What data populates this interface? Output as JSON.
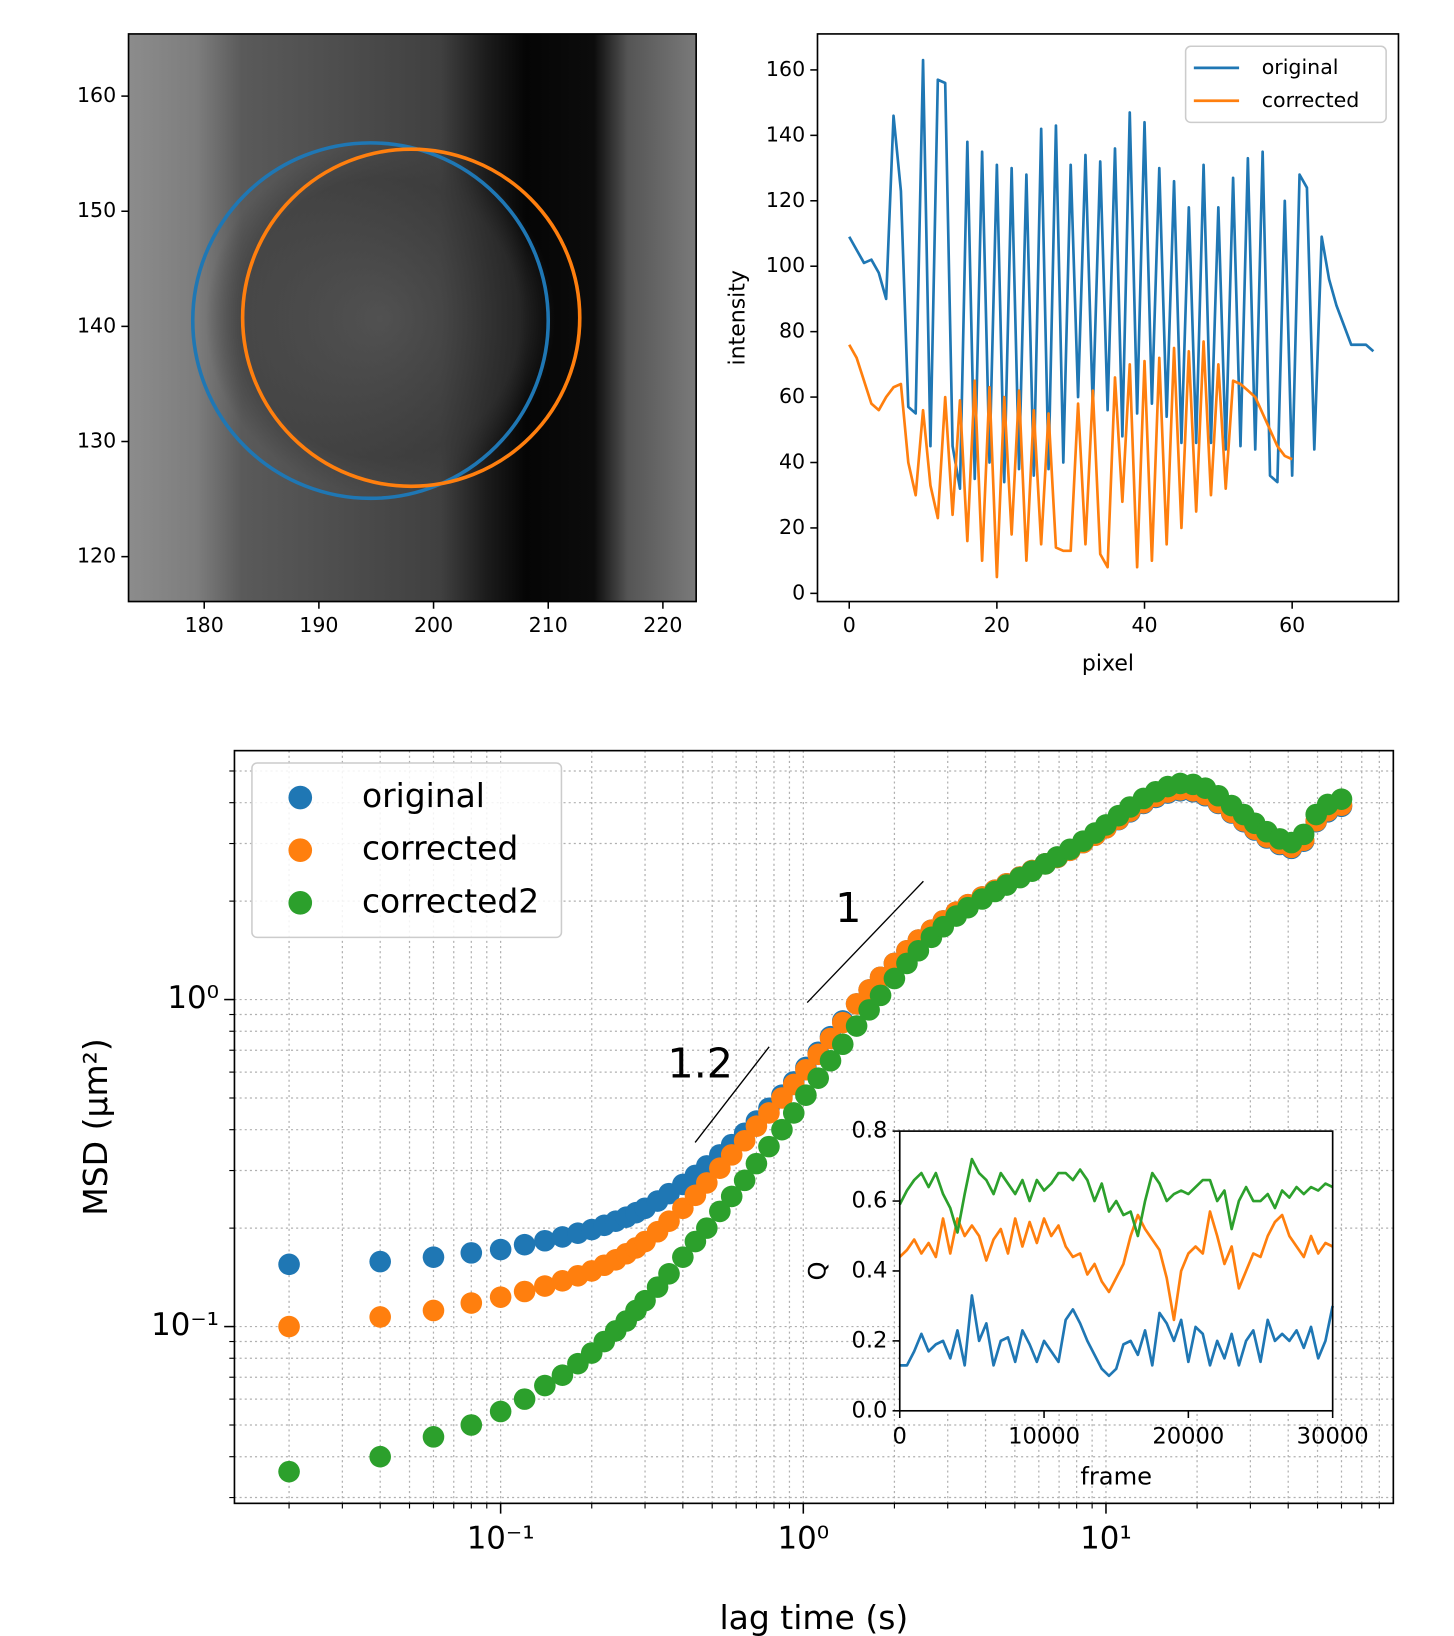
{
  "chart_data": [
    {
      "type": "image",
      "xlim": [
        173.4,
        222.9
      ],
      "ylim": [
        116.1,
        165.4
      ],
      "xticks": [
        180,
        190,
        200,
        210,
        220
      ],
      "yticks": [
        120,
        130,
        140,
        150,
        160
      ],
      "circles": [
        {
          "color": "#1f77b4",
          "center": [
            194.5,
            140.5
          ],
          "radius": 15.5
        },
        {
          "color": "#ff7f0e",
          "center": [
            198.05,
            140.75
          ],
          "radius": 14.7
        }
      ]
    },
    {
      "type": "line",
      "xlabel": "pixel",
      "ylabel": "intensity",
      "xlim": [
        -4.3,
        74.4
      ],
      "ylim": [
        -2.5,
        171
      ],
      "xticks": [
        0,
        20,
        40,
        60
      ],
      "yticks": [
        0,
        20,
        40,
        60,
        80,
        100,
        120,
        140,
        160
      ],
      "legend": "upper right",
      "series": [
        {
          "name": "original",
          "color": "#1f77b4",
          "x": [
            0,
            1,
            2,
            3,
            4,
            5,
            6,
            7,
            8,
            9,
            10,
            11,
            12,
            13,
            14,
            15,
            16,
            17,
            18,
            19,
            20,
            21,
            22,
            23,
            24,
            25,
            26,
            27,
            28,
            29,
            30,
            31,
            32,
            33,
            34,
            35,
            36,
            37,
            38,
            39,
            40,
            41,
            42,
            43,
            44,
            45,
            46,
            47,
            48,
            49,
            50,
            51,
            52,
            53,
            54,
            55,
            56,
            57,
            58,
            59,
            60,
            61,
            62,
            63,
            64,
            65,
            66,
            67,
            68,
            69,
            70,
            71
          ],
          "values": [
            109,
            105,
            101,
            102,
            98,
            90,
            146,
            123,
            57,
            55,
            163,
            45,
            157,
            156,
            45,
            32,
            138,
            35,
            135,
            40,
            131,
            34,
            130,
            38,
            128,
            36,
            142,
            38,
            143,
            40,
            131,
            60,
            134,
            56,
            132,
            56,
            136,
            48,
            147,
            55,
            144,
            58,
            130,
            54,
            126,
            46,
            118,
            46,
            131,
            46,
            118,
            44,
            127,
            45,
            133,
            44,
            135,
            36,
            34,
            120,
            36,
            128,
            124,
            44,
            109,
            96,
            88,
            82,
            76,
            76,
            76,
            74
          ]
        },
        {
          "name": "corrected",
          "color": "#ff7f0e",
          "x": [
            0,
            1,
            2,
            3,
            4,
            5,
            6,
            7,
            8,
            9,
            10,
            11,
            12,
            13,
            14,
            15,
            16,
            17,
            18,
            19,
            20,
            21,
            22,
            23,
            24,
            25,
            26,
            27,
            28,
            29,
            30,
            31,
            32,
            33,
            34,
            35,
            36,
            37,
            38,
            39,
            40,
            41,
            42,
            43,
            44,
            45,
            46,
            47,
            48,
            49,
            50,
            51,
            52,
            53,
            54,
            55,
            56,
            57,
            58,
            59,
            60
          ],
          "values": [
            76,
            72,
            65,
            58,
            56,
            60,
            63,
            64,
            40,
            30,
            56,
            33,
            23,
            60,
            24,
            59,
            16,
            65,
            10,
            63,
            5,
            60,
            18,
            62,
            10,
            56,
            15,
            55,
            14,
            13,
            13,
            58,
            15,
            62,
            12,
            8,
            66,
            28,
            70,
            8,
            71,
            10,
            72,
            15,
            75,
            20,
            74,
            25,
            77,
            30,
            70,
            32,
            65,
            64,
            62,
            60,
            55,
            50,
            45,
            42,
            41
          ]
        }
      ]
    },
    {
      "type": "scatter",
      "xscale": "log",
      "yscale": "log",
      "xlabel": "lag time (s)",
      "ylabel": "MSD (μm²)",
      "xlim": [
        0.0132,
        89
      ],
      "ylim": [
        0.0288,
        5.77
      ],
      "grid": true,
      "legend": "upper left",
      "xticks": [
        {
          "value": 0.1,
          "label": "10⁻¹"
        },
        {
          "value": 1,
          "label": "10⁰"
        },
        {
          "value": 10,
          "label": "10¹"
        }
      ],
      "yticks": [
        {
          "value": 0.1,
          "label": "10⁻¹"
        },
        {
          "value": 1,
          "label": "10⁰"
        }
      ],
      "xminorticks": [
        0.02,
        0.03,
        0.04,
        0.05,
        0.06,
        0.07,
        0.08,
        0.09,
        0.2,
        0.3,
        0.4,
        0.5,
        0.6,
        0.7,
        0.8,
        0.9,
        2,
        3,
        4,
        5,
        6,
        7,
        8,
        9,
        20,
        30,
        40,
        50,
        60,
        70,
        80
      ],
      "yminorticks": [
        0.03,
        0.04,
        0.05,
        0.06,
        0.07,
        0.08,
        0.09,
        0.2,
        0.3,
        0.4,
        0.5,
        0.6,
        0.7,
        0.8,
        0.9,
        2,
        3,
        4,
        5
      ],
      "annotations": [
        {
          "text": "1"
        },
        {
          "text": "1.2"
        }
      ],
      "x": [
        0.02,
        0.04,
        0.06,
        0.08,
        0.1,
        0.12,
        0.14,
        0.16,
        0.18,
        0.2,
        0.22,
        0.24,
        0.26,
        0.28,
        0.3,
        0.33,
        0.36,
        0.4,
        0.44,
        0.48,
        0.53,
        0.58,
        0.64,
        0.7,
        0.77,
        0.85,
        0.93,
        1.02,
        1.12,
        1.23,
        1.35,
        1.5,
        1.65,
        1.8,
        2,
        2.2,
        2.4,
        2.65,
        2.9,
        3.2,
        3.5,
        3.9,
        4.3,
        4.7,
        5.2,
        5.7,
        6.3,
        6.9,
        7.6,
        8.4,
        9.2,
        10,
        11,
        12,
        13.3,
        14.6,
        16,
        17.6,
        19.4,
        21.3,
        23.5,
        26,
        28.5,
        31,
        34,
        37.5,
        41,
        45,
        49.5,
        54,
        60
      ],
      "series": [
        {
          "name": "original",
          "color": "#1f77b4",
          "values": [
            0.155,
            0.158,
            0.163,
            0.168,
            0.172,
            0.178,
            0.183,
            0.188,
            0.193,
            0.198,
            0.204,
            0.21,
            0.216,
            0.223,
            0.23,
            0.242,
            0.255,
            0.272,
            0.29,
            0.31,
            0.335,
            0.36,
            0.39,
            0.425,
            0.465,
            0.51,
            0.56,
            0.62,
            0.69,
            0.77,
            0.86,
            0.97,
            1.07,
            1.17,
            1.29,
            1.41,
            1.52,
            1.63,
            1.74,
            1.85,
            1.95,
            2.06,
            2.16,
            2.26,
            2.37,
            2.48,
            2.6,
            2.72,
            2.86,
            3.02,
            3.18,
            3.35,
            3.55,
            3.75,
            3.98,
            4.15,
            4.28,
            4.35,
            4.32,
            4.2,
            3.98,
            3.72,
            3.5,
            3.3,
            3.12,
            2.98,
            2.9,
            3.05,
            3.5,
            3.75,
            3.9
          ]
        },
        {
          "name": "corrected",
          "color": "#ff7f0e",
          "values": [
            0.1,
            0.107,
            0.112,
            0.118,
            0.123,
            0.128,
            0.133,
            0.138,
            0.143,
            0.148,
            0.154,
            0.16,
            0.167,
            0.174,
            0.182,
            0.195,
            0.21,
            0.23,
            0.252,
            0.275,
            0.305,
            0.335,
            0.37,
            0.41,
            0.45,
            0.5,
            0.55,
            0.61,
            0.68,
            0.76,
            0.85,
            0.97,
            1.07,
            1.17,
            1.29,
            1.41,
            1.52,
            1.63,
            1.74,
            1.85,
            1.95,
            2.06,
            2.16,
            2.26,
            2.37,
            2.48,
            2.6,
            2.72,
            2.86,
            3.02,
            3.18,
            3.35,
            3.56,
            3.77,
            4.0,
            4.18,
            4.31,
            4.38,
            4.35,
            4.23,
            4.0,
            3.74,
            3.52,
            3.32,
            3.14,
            3.0,
            2.92,
            3.07,
            3.52,
            3.78,
            3.93
          ]
        },
        {
          "name": "corrected2",
          "color": "#2ca02c",
          "values": [
            0.036,
            0.04,
            0.046,
            0.05,
            0.055,
            0.06,
            0.066,
            0.071,
            0.077,
            0.083,
            0.09,
            0.097,
            0.104,
            0.112,
            0.12,
            0.132,
            0.145,
            0.163,
            0.182,
            0.2,
            0.225,
            0.25,
            0.28,
            0.315,
            0.355,
            0.4,
            0.45,
            0.51,
            0.575,
            0.65,
            0.73,
            0.83,
            0.93,
            1.03,
            1.16,
            1.29,
            1.41,
            1.55,
            1.67,
            1.8,
            1.91,
            2.03,
            2.14,
            2.24,
            2.36,
            2.47,
            2.6,
            2.73,
            2.88,
            3.05,
            3.23,
            3.42,
            3.65,
            3.88,
            4.12,
            4.32,
            4.48,
            4.58,
            4.55,
            4.43,
            4.2,
            3.92,
            3.68,
            3.46,
            3.26,
            3.1,
            3.02,
            3.2,
            3.68,
            3.95,
            4.1
          ]
        }
      ]
    },
    {
      "type": "line",
      "xlabel": "frame",
      "ylabel": "Q",
      "xlim": [
        0,
        30000
      ],
      "ylim": [
        0,
        0.8
      ],
      "xticks": [
        0,
        10000,
        20000,
        30000
      ],
      "yticks": [
        {
          "value": 0,
          "label": "0.0"
        },
        0.2,
        0.4,
        0.6,
        0.8
      ],
      "x": [
        0,
        500,
        1000,
        1500,
        2000,
        2500,
        3000,
        3500,
        4000,
        4500,
        5000,
        5500,
        6000,
        6500,
        7000,
        7500,
        8000,
        8500,
        9000,
        9500,
        10000,
        10500,
        11000,
        11500,
        12000,
        12500,
        13000,
        13500,
        14000,
        14500,
        15000,
        15500,
        16000,
        16500,
        17000,
        17500,
        18000,
        18500,
        19000,
        19500,
        20000,
        20500,
        21000,
        21500,
        22000,
        22500,
        23000,
        23500,
        24000,
        24500,
        25000,
        25500,
        26000,
        26500,
        27000,
        27500,
        28000,
        28500,
        29000,
        29500,
        30000
      ],
      "series": [
        {
          "color": "#1f77b4",
          "values": [
            0.13,
            0.13,
            0.17,
            0.22,
            0.17,
            0.19,
            0.2,
            0.15,
            0.23,
            0.13,
            0.33,
            0.2,
            0.25,
            0.13,
            0.2,
            0.21,
            0.14,
            0.23,
            0.19,
            0.14,
            0.2,
            0.17,
            0.14,
            0.26,
            0.29,
            0.25,
            0.2,
            0.16,
            0.12,
            0.1,
            0.12,
            0.19,
            0.2,
            0.16,
            0.23,
            0.13,
            0.28,
            0.25,
            0.2,
            0.26,
            0.14,
            0.24,
            0.22,
            0.13,
            0.2,
            0.15,
            0.22,
            0.13,
            0.2,
            0.23,
            0.14,
            0.26,
            0.2,
            0.22,
            0.2,
            0.23,
            0.18,
            0.24,
            0.15,
            0.2,
            0.3
          ]
        },
        {
          "color": "#ff7f0e",
          "values": [
            0.44,
            0.46,
            0.49,
            0.45,
            0.48,
            0.44,
            0.55,
            0.45,
            0.55,
            0.5,
            0.53,
            0.5,
            0.43,
            0.49,
            0.52,
            0.45,
            0.55,
            0.47,
            0.54,
            0.48,
            0.55,
            0.5,
            0.53,
            0.47,
            0.44,
            0.45,
            0.39,
            0.42,
            0.37,
            0.34,
            0.38,
            0.42,
            0.5,
            0.56,
            0.52,
            0.49,
            0.46,
            0.38,
            0.26,
            0.4,
            0.45,
            0.47,
            0.45,
            0.57,
            0.5,
            0.42,
            0.47,
            0.35,
            0.4,
            0.45,
            0.44,
            0.5,
            0.54,
            0.56,
            0.5,
            0.47,
            0.44,
            0.5,
            0.45,
            0.48,
            0.47
          ]
        },
        {
          "color": "#2ca02c",
          "values": [
            0.59,
            0.63,
            0.66,
            0.68,
            0.64,
            0.68,
            0.62,
            0.58,
            0.51,
            0.62,
            0.72,
            0.68,
            0.66,
            0.62,
            0.68,
            0.65,
            0.62,
            0.66,
            0.6,
            0.66,
            0.63,
            0.65,
            0.68,
            0.68,
            0.66,
            0.69,
            0.66,
            0.6,
            0.65,
            0.57,
            0.6,
            0.56,
            0.57,
            0.5,
            0.6,
            0.68,
            0.65,
            0.6,
            0.62,
            0.63,
            0.62,
            0.64,
            0.66,
            0.66,
            0.6,
            0.63,
            0.52,
            0.6,
            0.64,
            0.6,
            0.6,
            0.62,
            0.58,
            0.63,
            0.61,
            0.64,
            0.62,
            0.64,
            0.63,
            0.65,
            0.64
          ]
        }
      ]
    }
  ]
}
